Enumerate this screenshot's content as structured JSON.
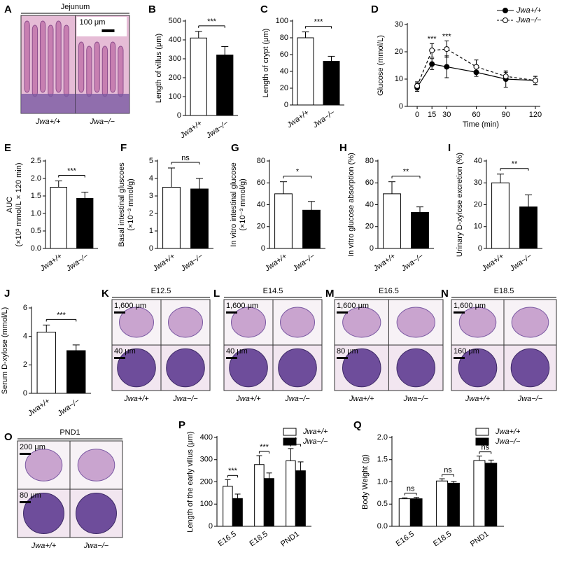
{
  "figure": {
    "panels": [
      {
        "letter": "A",
        "title": "Jejunum",
        "scale_bars": [
          "100 μm"
        ],
        "labels": [
          "Jwa+/+",
          "Jwa−/−"
        ]
      },
      {
        "letter": "K",
        "title": "E12.5",
        "scale_bars": [
          "1,600 μm",
          "40 μm"
        ],
        "labels": [
          "Jwa+/+",
          "Jwa−/−"
        ]
      },
      {
        "letter": "L",
        "title": "E14.5",
        "scale_bars": [
          "1,600 μm",
          "40 μm"
        ],
        "labels": [
          "Jwa+/+",
          "Jwa−/−"
        ]
      },
      {
        "letter": "M",
        "title": "E16.5",
        "scale_bars": [
          "1,600 μm",
          "80 μm"
        ],
        "labels": [
          "Jwa+/+",
          "Jwa−/−"
        ]
      },
      {
        "letter": "N",
        "title": "E18.5",
        "scale_bars": [
          "1,600 μm",
          "160 μm"
        ],
        "labels": [
          "Jwa+/+",
          "Jwa−/−"
        ]
      },
      {
        "letter": "O",
        "title": "PND1",
        "scale_bars": [
          "200 μm",
          "80 μm"
        ],
        "labels": [
          "Jwa+/+",
          "Jwa−/−"
        ]
      }
    ]
  },
  "chart_data": [
    {
      "letter": "B",
      "type": "bar",
      "ylabel": "Length of villus (μm)",
      "categories": [
        "Jwa+/+",
        "Jwa−/−"
      ],
      "values": [
        410,
        320
      ],
      "errors": [
        35,
        45
      ],
      "colors": [
        "#ffffff",
        "#000000"
      ],
      "ylim": [
        0,
        500
      ],
      "yticks": [
        0,
        100,
        200,
        300,
        400,
        500
      ],
      "annotations": [
        "***"
      ]
    },
    {
      "letter": "C",
      "type": "bar",
      "ylabel": "Length of crypt (μm)",
      "categories": [
        "Jwa+/+",
        "Jwa−/−"
      ],
      "values": [
        80,
        52
      ],
      "errors": [
        7,
        6
      ],
      "colors": [
        "#ffffff",
        "#000000"
      ],
      "ylim": [
        0,
        100
      ],
      "yticks": [
        0,
        20,
        40,
        60,
        80,
        100
      ],
      "annotations": [
        "***"
      ]
    },
    {
      "letter": "D",
      "type": "line",
      "ylabel": "Glucose (mmol/L)",
      "xlabel": "Time (min)",
      "x": [
        0,
        15,
        30,
        60,
        90,
        120
      ],
      "xlim": [
        -10,
        125
      ],
      "xticks": [
        0,
        15,
        30,
        60,
        90,
        120
      ],
      "ylim": [
        0,
        30
      ],
      "yticks": [
        0,
        10,
        20,
        30
      ],
      "legend": "upper right",
      "series": [
        {
          "name": "Jwa+/+",
          "color": "#000000",
          "marker_fill": "#000000",
          "dashed": false,
          "values": [
            7,
            15.5,
            14.5,
            12.5,
            10,
            9.5
          ],
          "errors": [
            1.5,
            2,
            4,
            1.5,
            3,
            1.5
          ]
        },
        {
          "name": "Jwa−/−",
          "color": "#000000",
          "marker_fill": "#ffffff",
          "dashed": true,
          "values": [
            7.5,
            20.5,
            21,
            14.5,
            11,
            9.5
          ],
          "errors": [
            1.5,
            2.5,
            3,
            2.5,
            1.5,
            1.5
          ]
        }
      ],
      "annotations": [
        {
          "x": 15,
          "text": "***"
        },
        {
          "x": 30,
          "text": "***"
        }
      ]
    },
    {
      "letter": "E",
      "type": "bar",
      "ylabel": [
        "AUC",
        "(×10³ mmol/L × 120 min)"
      ],
      "categories": [
        "Jwa+/+",
        "Jwa−/−"
      ],
      "values": [
        1.75,
        1.43
      ],
      "errors": [
        0.18,
        0.18
      ],
      "colors": [
        "#ffffff",
        "#000000"
      ],
      "ylim": [
        0,
        2.5
      ],
      "yticks": [
        {
          "value": 0,
          "label": "0.0"
        },
        {
          "value": 0.5,
          "label": "0.5"
        },
        {
          "value": 1,
          "label": "1.0"
        },
        {
          "value": 1.5,
          "label": "1.5"
        },
        {
          "value": 2,
          "label": "2.0"
        },
        {
          "value": 2.5,
          "label": "2.5"
        }
      ],
      "annotations": [
        "***"
      ]
    },
    {
      "letter": "F",
      "type": "bar",
      "ylabel": [
        "Basal intestinal gluscoes",
        "(×10⁻³ mmol/g)"
      ],
      "categories": [
        "Jwa+/+",
        "Jwa−/−"
      ],
      "values": [
        3.5,
        3.4
      ],
      "errors": [
        1.1,
        0.6
      ],
      "colors": [
        "#ffffff",
        "#000000"
      ],
      "ylim": [
        0,
        5
      ],
      "yticks": [
        0,
        1,
        2,
        3,
        4,
        5
      ],
      "annotations": [
        "ns"
      ]
    },
    {
      "letter": "G",
      "type": "bar",
      "ylabel": [
        "In vitro intestinal glucose",
        "(×10⁻³ mmol/g)"
      ],
      "categories": [
        "Jwa+/+",
        "Jwa−/−"
      ],
      "values": [
        50,
        35
      ],
      "errors": [
        11,
        8
      ],
      "colors": [
        "#ffffff",
        "#000000"
      ],
      "ylim": [
        0,
        80
      ],
      "yticks": [
        0,
        20,
        40,
        60,
        80
      ],
      "annotations": [
        "*"
      ]
    },
    {
      "letter": "H",
      "type": "bar",
      "ylabel": "In vitro glucose absorption (%)",
      "categories": [
        "Jwa+/+",
        "Jwa−/−"
      ],
      "values": [
        50,
        33
      ],
      "errors": [
        11,
        5
      ],
      "colors": [
        "#ffffff",
        "#000000"
      ],
      "ylim": [
        0,
        80
      ],
      "yticks": [
        0,
        20,
        40,
        60,
        80
      ],
      "annotations": [
        "**"
      ]
    },
    {
      "letter": "I",
      "type": "bar",
      "ylabel": "Urinary D-xylose excretion (%)",
      "categories": [
        "Jwa+/+",
        "Jwa−/−"
      ],
      "values": [
        30,
        19
      ],
      "errors": [
        4,
        5.5
      ],
      "colors": [
        "#ffffff",
        "#000000"
      ],
      "ylim": [
        0,
        40
      ],
      "yticks": [
        0,
        10,
        20,
        30,
        40
      ],
      "annotations": [
        "**"
      ]
    },
    {
      "letter": "J",
      "type": "bar",
      "ylabel": "Serum D-xylose  (mmol/L)",
      "categories": [
        "Jwa+/+",
        "Jwa−/−"
      ],
      "values": [
        4.3,
        3.0
      ],
      "errors": [
        0.5,
        0.4
      ],
      "colors": [
        "#ffffff",
        "#000000"
      ],
      "ylim": [
        0,
        6
      ],
      "yticks": [
        0,
        2,
        4,
        6
      ],
      "annotations": [
        "***"
      ]
    },
    {
      "letter": "P",
      "type": "grouped_bar",
      "ylabel": "Length of the early villus (μm)",
      "categories": [
        "E16.5",
        "E18.5",
        "PND1"
      ],
      "ylim": [
        0,
        400
      ],
      "yticks": [
        0,
        100,
        200,
        300,
        400
      ],
      "legend": "upper right",
      "series": [
        {
          "name": "Jwa+/+",
          "color": "#ffffff",
          "values": [
            180,
            278,
            295
          ],
          "errors": [
            30,
            40,
            55
          ]
        },
        {
          "name": "Jwa−/−",
          "color": "#000000",
          "values": [
            125,
            215,
            250
          ],
          "errors": [
            20,
            25,
            40
          ]
        }
      ],
      "annotations": [
        "***",
        "***",
        "*"
      ]
    },
    {
      "letter": "Q",
      "type": "grouped_bar",
      "ylabel": "Body Weight (g)",
      "categories": [
        "E16.5",
        "E18.5",
        "PND1"
      ],
      "ylim": [
        0,
        2
      ],
      "yticks": [
        {
          "value": 0,
          "label": "0.0"
        },
        {
          "value": 0.5,
          "label": "0.5"
        },
        {
          "value": 1,
          "label": "1.0"
        },
        {
          "value": 1.5,
          "label": "1.5"
        },
        {
          "value": 2,
          "label": "2.0"
        }
      ],
      "legend": "upper right",
      "series": [
        {
          "name": "Jwa+/+",
          "color": "#ffffff",
          "values": [
            0.62,
            1.02,
            1.48
          ],
          "errors": [
            0.02,
            0.05,
            0.1
          ]
        },
        {
          "name": "Jwa−/−",
          "color": "#000000",
          "values": [
            0.62,
            0.97,
            1.42
          ],
          "errors": [
            0.03,
            0.04,
            0.07
          ]
        }
      ],
      "annotations": [
        "ns",
        "ns",
        "ns"
      ]
    }
  ]
}
